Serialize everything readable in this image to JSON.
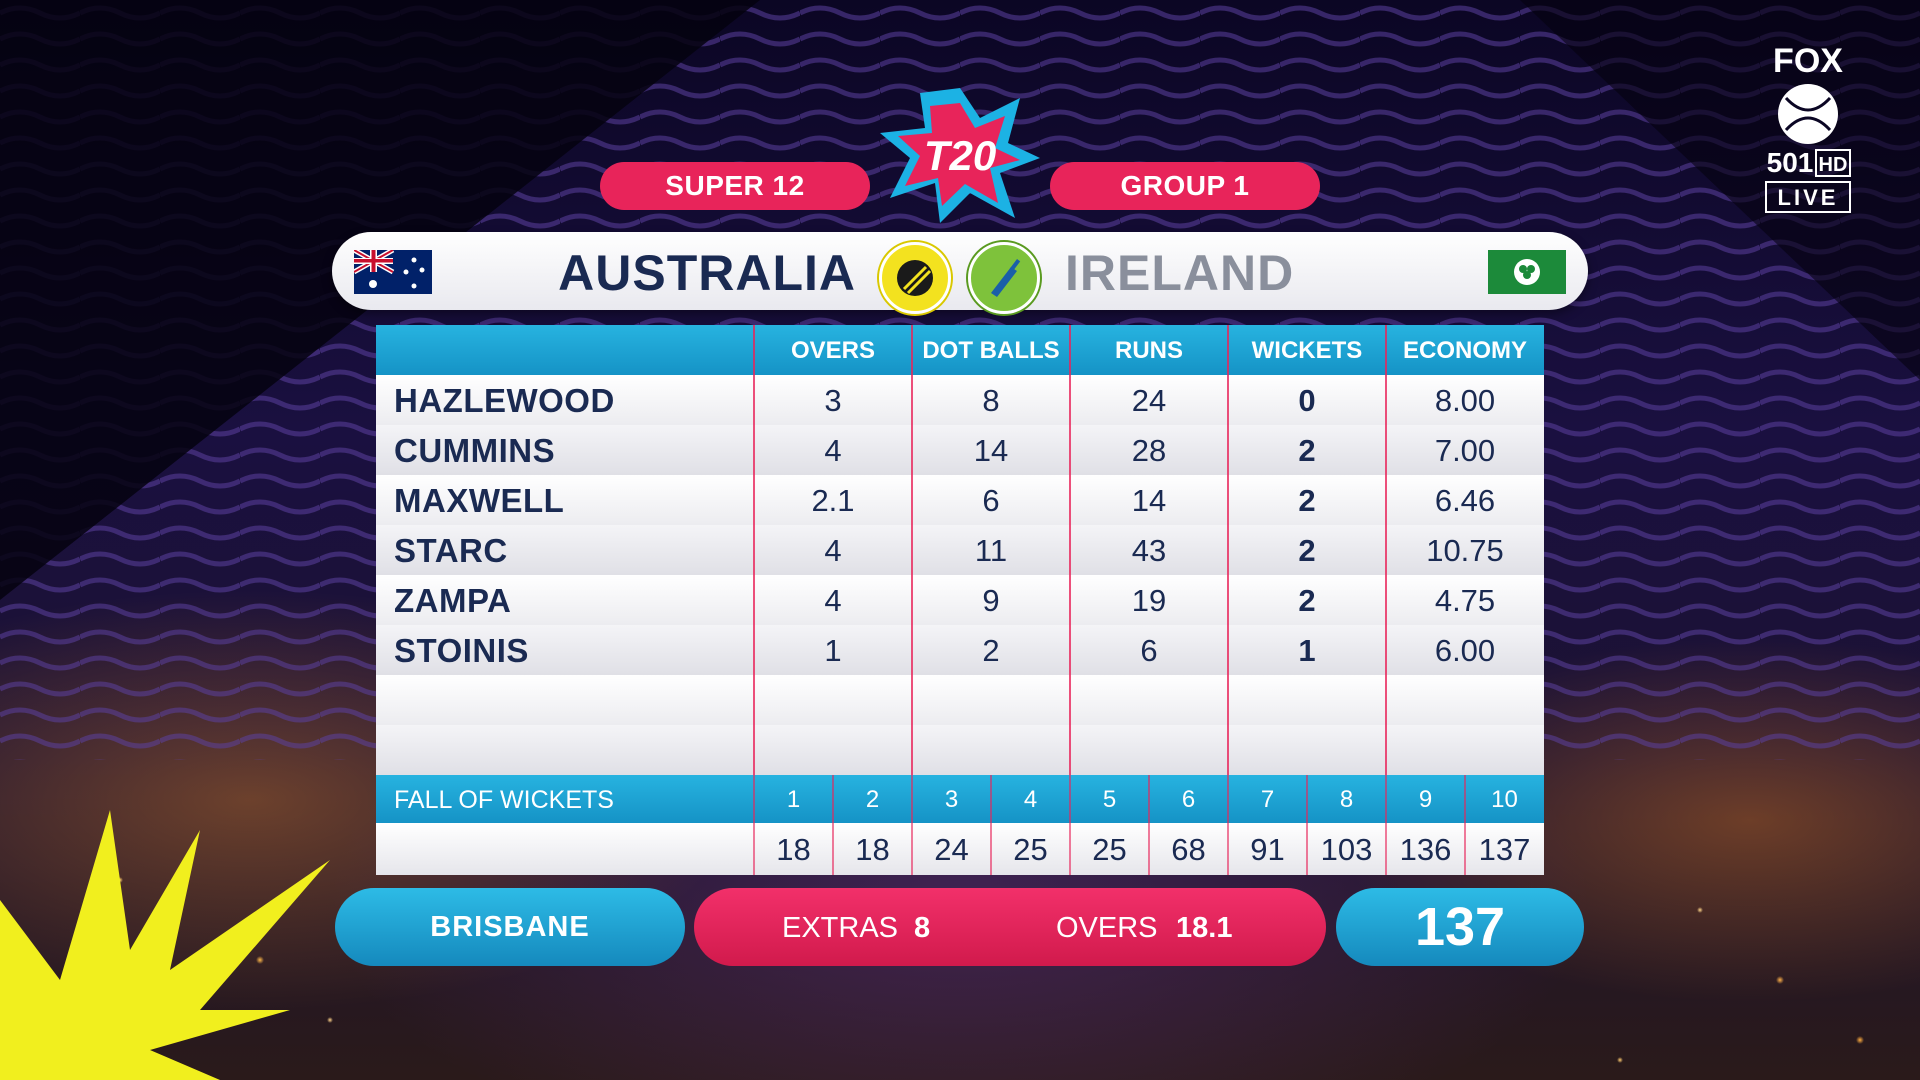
{
  "header": {
    "stage_label": "SUPER 12",
    "group_label": "GROUP 1",
    "logo_text": "T20"
  },
  "teams": {
    "home": {
      "name": "AUSTRALIA",
      "flag": "australia-flag-icon",
      "role_icon": "ball-icon"
    },
    "away": {
      "name": "IRELAND",
      "flag": "ireland-flag-icon",
      "role_icon": "bat-icon"
    }
  },
  "bowling": {
    "columns": [
      "OVERS",
      "DOT BALLS",
      "RUNS",
      "WICKETS",
      "ECONOMY"
    ],
    "rows": [
      {
        "name": "HAZLEWOOD",
        "overs": "3",
        "dots": "8",
        "runs": "24",
        "wickets": "0",
        "economy": "8.00"
      },
      {
        "name": "CUMMINS",
        "overs": "4",
        "dots": "14",
        "runs": "28",
        "wickets": "2",
        "economy": "7.00"
      },
      {
        "name": "MAXWELL",
        "overs": "2.1",
        "dots": "6",
        "runs": "14",
        "wickets": "2",
        "economy": "6.46"
      },
      {
        "name": "STARC",
        "overs": "4",
        "dots": "11",
        "runs": "43",
        "wickets": "2",
        "economy": "10.75"
      },
      {
        "name": "ZAMPA",
        "overs": "4",
        "dots": "9",
        "runs": "19",
        "wickets": "2",
        "economy": "4.75"
      },
      {
        "name": "STOINIS",
        "overs": "1",
        "dots": "2",
        "runs": "6",
        "wickets": "1",
        "economy": "6.00"
      }
    ]
  },
  "fall_of_wickets": {
    "label": "FALL OF WICKETS",
    "numbers": [
      "1",
      "2",
      "3",
      "4",
      "5",
      "6",
      "7",
      "8",
      "9",
      "10"
    ],
    "scores": [
      "18",
      "18",
      "24",
      "25",
      "25",
      "68",
      "91",
      "103",
      "136",
      "137"
    ]
  },
  "footer": {
    "venue": "BRISBANE",
    "extras_label": "EXTRAS",
    "extras_value": "8",
    "overs_label": "OVERS",
    "overs_value": "18.1",
    "total": "137"
  },
  "broadcaster": {
    "logo_name": "fox-cricket-logo",
    "brand_top": "FOX",
    "channel": "501",
    "hd": "HD",
    "live": "LIVE"
  },
  "colors": {
    "pink": "#e8245a",
    "blue": "#1ba3d6",
    "navy": "#1a2a52",
    "yellow": "#f3e21f"
  }
}
